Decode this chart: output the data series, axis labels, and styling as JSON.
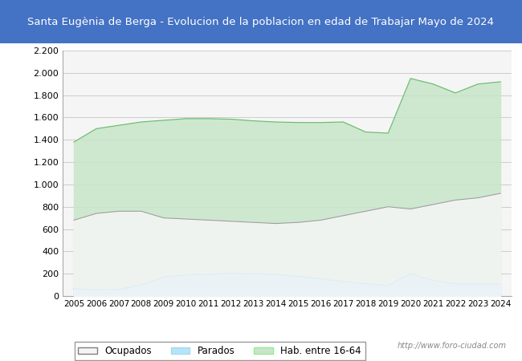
{
  "title": "Santa Eugènia de Berga - Evolucion de la poblacion en edad de Trabajar Mayo de 2024",
  "title_bg": "#4472c4",
  "title_color": "#ffffff",
  "xlabel": "",
  "ylabel": "",
  "ylim": [
    0,
    2200
  ],
  "yticks": [
    0,
    200,
    400,
    600,
    800,
    1000,
    1200,
    1400,
    1600,
    1800,
    2000,
    2200
  ],
  "ytick_labels": [
    "0",
    "200",
    "400",
    "600",
    "800",
    "1.000",
    "1.200",
    "1.400",
    "1.600",
    "1.800",
    "2.000",
    "2.200"
  ],
  "bg_color": "#ffffff",
  "plot_bg": "#f5f5f5",
  "grid_color": "#cccccc",
  "watermark": "http://www.foro-ciudad.com",
  "legend_labels": [
    "Ocupados",
    "Parados",
    "Hab. entre 16-64"
  ],
  "series": {
    "hab": {
      "years": [
        2005,
        2006,
        2007,
        2008,
        2009,
        2010,
        2011,
        2012,
        2013,
        2014,
        2015,
        2016,
        2017,
        2018,
        2019,
        2020,
        2021,
        2022,
        2023,
        2024
      ],
      "values": [
        1380,
        1500,
        1530,
        1560,
        1575,
        1590,
        1590,
        1585,
        1570,
        1560,
        1555,
        1555,
        1560,
        1470,
        1460,
        1950,
        1900,
        1820,
        1900,
        1920
      ],
      "color": "#c8e6c9",
      "edge_color": "#66bb6a",
      "alpha": 0.85
    },
    "parados": {
      "years": [
        2005,
        2006,
        2007,
        2008,
        2009,
        2010,
        2011,
        2012,
        2013,
        2014,
        2015,
        2016,
        2017,
        2018,
        2019,
        2020,
        2021,
        2022,
        2023,
        2024
      ],
      "values": [
        65,
        55,
        60,
        100,
        170,
        190,
        195,
        205,
        200,
        195,
        175,
        155,
        130,
        110,
        95,
        200,
        140,
        110,
        110,
        105
      ],
      "color": "#b3e5fc",
      "edge_color": "#4fc3f7",
      "alpha": 0.85
    },
    "ocupados": {
      "years": [
        2005,
        2006,
        2007,
        2008,
        2009,
        2010,
        2011,
        2012,
        2013,
        2014,
        2015,
        2016,
        2017,
        2018,
        2019,
        2020,
        2021,
        2022,
        2023,
        2024
      ],
      "values": [
        680,
        740,
        760,
        760,
        700,
        690,
        680,
        670,
        660,
        650,
        660,
        680,
        720,
        760,
        800,
        780,
        820,
        860,
        880,
        920
      ],
      "color": "#f5f5f5",
      "edge_color": "#9e9e9e",
      "alpha": 0.85
    }
  }
}
